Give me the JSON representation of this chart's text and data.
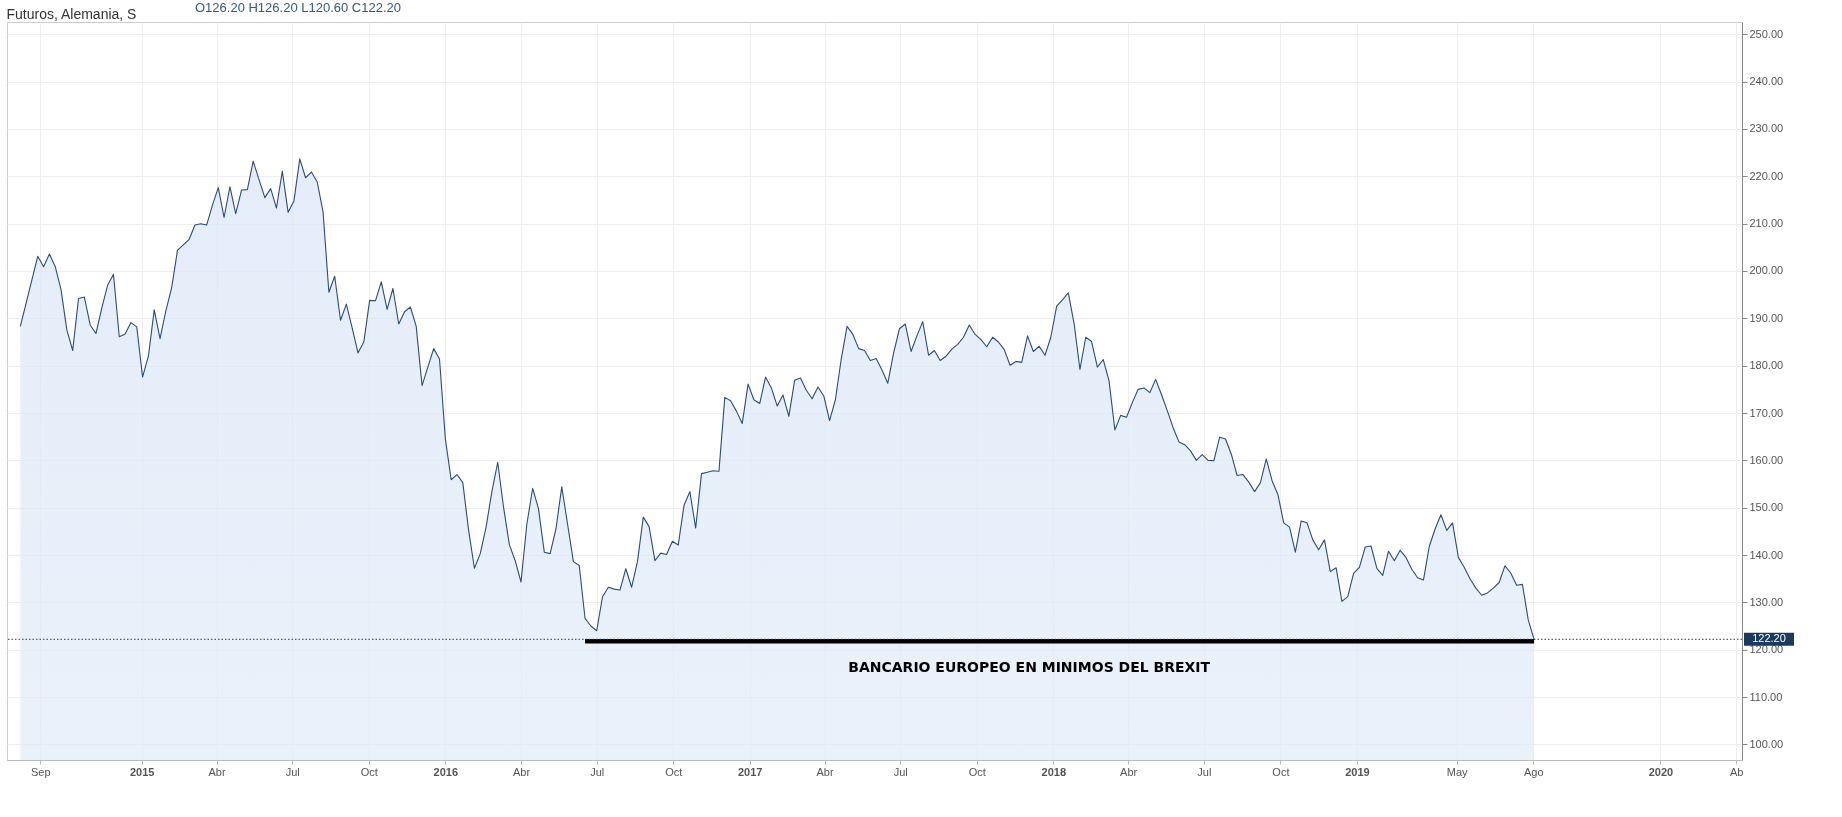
{
  "chart_data": {
    "type": "area",
    "title": "Futuros, Alemania, S",
    "annotations": [
      "O126.20 H126.20 L120.60 C122.20",
      {
        "text": "BANCARIO EUROPEO EN MINIMOS DEL BREXIT",
        "x": "2017-12-03",
        "y": 121.8
      }
    ],
    "x": [
      "2014-08-08",
      "2014-08-15",
      "2014-08-22",
      "2014-08-29",
      "2014-09-05",
      "2014-09-12",
      "2014-09-19",
      "2014-09-26",
      "2014-10-03",
      "2014-10-10",
      "2014-10-17",
      "2014-10-24",
      "2014-10-31",
      "2014-11-07",
      "2014-11-14",
      "2014-11-21",
      "2014-11-28",
      "2014-12-05",
      "2014-12-12",
      "2014-12-19",
      "2014-12-26",
      "2015-01-02",
      "2015-01-09",
      "2015-01-16",
      "2015-01-23",
      "2015-01-30",
      "2015-02-06",
      "2015-02-13",
      "2015-02-20",
      "2015-02-27",
      "2015-03-06",
      "2015-03-13",
      "2015-03-20",
      "2015-03-27",
      "2015-04-03",
      "2015-04-10",
      "2015-04-17",
      "2015-04-24",
      "2015-05-01",
      "2015-05-08",
      "2015-05-15",
      "2015-05-22",
      "2015-05-29",
      "2015-06-05",
      "2015-06-12",
      "2015-06-19",
      "2015-06-26",
      "2015-07-03",
      "2015-07-10",
      "2015-07-17",
      "2015-07-24",
      "2015-07-31",
      "2015-08-07",
      "2015-08-14",
      "2015-08-21",
      "2015-08-28",
      "2015-09-04",
      "2015-09-11",
      "2015-09-18",
      "2015-09-25",
      "2015-10-02",
      "2015-10-09",
      "2015-10-16",
      "2015-10-23",
      "2015-10-30",
      "2015-11-06",
      "2015-11-13",
      "2015-11-20",
      "2015-11-27",
      "2015-12-04",
      "2015-12-11",
      "2015-12-18",
      "2015-12-25",
      "2016-01-01",
      "2016-01-08",
      "2016-01-15",
      "2016-01-22",
      "2016-01-29",
      "2016-02-05",
      "2016-02-12",
      "2016-02-19",
      "2016-02-26",
      "2016-03-04",
      "2016-03-11",
      "2016-03-18",
      "2016-03-25",
      "2016-04-01",
      "2016-04-08",
      "2016-04-15",
      "2016-04-22",
      "2016-04-29",
      "2016-05-06",
      "2016-05-13",
      "2016-05-20",
      "2016-05-27",
      "2016-06-03",
      "2016-06-10",
      "2016-06-17",
      "2016-06-24",
      "2016-07-01",
      "2016-07-08",
      "2016-07-15",
      "2016-07-22",
      "2016-07-29",
      "2016-08-05",
      "2016-08-12",
      "2016-08-19",
      "2016-08-26",
      "2016-09-02",
      "2016-09-09",
      "2016-09-16",
      "2016-09-23",
      "2016-09-30",
      "2016-10-07",
      "2016-10-14",
      "2016-10-21",
      "2016-10-28",
      "2016-11-04",
      "2016-11-11",
      "2016-11-18",
      "2016-11-25",
      "2016-12-02",
      "2016-12-09",
      "2016-12-16",
      "2016-12-23",
      "2016-12-30",
      "2017-01-06",
      "2017-01-13",
      "2017-01-20",
      "2017-01-27",
      "2017-02-03",
      "2017-02-10",
      "2017-02-17",
      "2017-02-24",
      "2017-03-03",
      "2017-03-10",
      "2017-03-17",
      "2017-03-24",
      "2017-03-31",
      "2017-04-07",
      "2017-04-14",
      "2017-04-21",
      "2017-04-28",
      "2017-05-05",
      "2017-05-12",
      "2017-05-19",
      "2017-05-26",
      "2017-06-02",
      "2017-06-09",
      "2017-06-16",
      "2017-06-23",
      "2017-06-30",
      "2017-07-07",
      "2017-07-14",
      "2017-07-21",
      "2017-07-28",
      "2017-08-04",
      "2017-08-11",
      "2017-08-18",
      "2017-08-25",
      "2017-09-01",
      "2017-09-08",
      "2017-09-15",
      "2017-09-22",
      "2017-09-29",
      "2017-10-06",
      "2017-10-13",
      "2017-10-20",
      "2017-10-27",
      "2017-11-03",
      "2017-11-10",
      "2017-11-17",
      "2017-11-24",
      "2017-12-01",
      "2017-12-08",
      "2017-12-15",
      "2017-12-22",
      "2017-12-29",
      "2018-01-05",
      "2018-01-12",
      "2018-01-19",
      "2018-01-26",
      "2018-02-02",
      "2018-02-09",
      "2018-02-16",
      "2018-02-23",
      "2018-03-02",
      "2018-03-09",
      "2018-03-16",
      "2018-03-23",
      "2018-03-30",
      "2018-04-06",
      "2018-04-13",
      "2018-04-20",
      "2018-04-27",
      "2018-05-04",
      "2018-05-11",
      "2018-05-18",
      "2018-05-25",
      "2018-06-01",
      "2018-06-08",
      "2018-06-15",
      "2018-06-22",
      "2018-06-29",
      "2018-07-06",
      "2018-07-13",
      "2018-07-20",
      "2018-07-27",
      "2018-08-03",
      "2018-08-10",
      "2018-08-17",
      "2018-08-24",
      "2018-08-31",
      "2018-09-07",
      "2018-09-14",
      "2018-09-21",
      "2018-09-28",
      "2018-10-05",
      "2018-10-12",
      "2018-10-19",
      "2018-10-26",
      "2018-11-02",
      "2018-11-09",
      "2018-11-16",
      "2018-11-23",
      "2018-11-30",
      "2018-12-07",
      "2018-12-14",
      "2018-12-21",
      "2018-12-28",
      "2019-01-04",
      "2019-01-11",
      "2019-01-18",
      "2019-01-25",
      "2019-02-01",
      "2019-02-08",
      "2019-02-15",
      "2019-02-22",
      "2019-03-01",
      "2019-03-08",
      "2019-03-15",
      "2019-03-22",
      "2019-03-29",
      "2019-04-05",
      "2019-04-12",
      "2019-04-19",
      "2019-04-26",
      "2019-05-03",
      "2019-05-10",
      "2019-05-17",
      "2019-05-24",
      "2019-05-31",
      "2019-06-07",
      "2019-06-14",
      "2019-06-21",
      "2019-06-28",
      "2019-07-05",
      "2019-07-12",
      "2019-07-19",
      "2019-07-26",
      "2019-08-02"
    ],
    "series": [
      {
        "color": "#2b4d7a",
        "values": [
          188.3,
          193.2,
          198.2,
          203.1,
          200.9,
          203.6,
          200.9,
          196.0,
          187.5,
          183.2,
          194.2,
          194.5,
          188.6,
          186.8,
          192.2,
          197.0,
          199.3,
          186.1,
          186.7,
          189.1,
          188.2,
          177.6,
          182.0,
          191.8,
          185.7,
          191.6,
          196.5,
          204.4,
          205.5,
          206.7,
          209.7,
          210.0,
          209.7,
          213.9,
          217.6,
          211.3,
          217.8,
          212.1,
          217.1,
          217.2,
          223.2,
          219.3,
          215.5,
          217.4,
          213.3,
          221.1,
          212.4,
          214.8,
          223.7,
          219.7,
          220.9,
          218.8,
          212.5,
          195.5,
          198.9,
          189.6,
          193.0,
          188.0,
          182.7,
          185.0,
          193.8,
          193.7,
          197.7,
          191.9,
          196.3,
          188.8,
          191.4,
          192.4,
          188.3,
          175.8,
          179.7,
          183.6,
          181.4,
          164.6,
          155.9,
          157.0,
          155.3,
          145.2,
          137.2,
          140.3,
          145.9,
          153.4,
          159.6,
          150.1,
          142.2,
          138.8,
          134.3,
          146.5,
          154.1,
          149.8,
          140.6,
          140.3,
          145.5,
          154.4,
          146.5,
          138.6,
          137.8,
          126.6,
          125.0,
          124.0,
          131.2,
          133.2,
          132.8,
          132.6,
          137.1,
          133.2,
          138.6,
          148.0,
          146.0,
          138.8,
          140.4,
          140.1,
          142.9,
          142.1,
          150.5,
          153.4,
          145.7,
          157.2,
          157.5,
          157.8,
          157.7,
          173.3,
          172.6,
          170.4,
          167.8,
          176.1,
          172.8,
          172.0,
          177.6,
          175.3,
          171.5,
          173.8,
          169.3,
          176.9,
          177.4,
          174.8,
          173.0,
          175.5,
          173.6,
          168.4,
          172.8,
          181.4,
          188.3,
          186.6,
          183.6,
          183.2,
          181.1,
          181.5,
          179.1,
          176.3,
          182.7,
          187.8,
          188.8,
          183.0,
          186.3,
          189.3,
          182.2,
          183.2,
          181.1,
          182.0,
          183.5,
          184.5,
          186.0,
          188.6,
          186.6,
          185.5,
          184.0,
          186.0,
          185.0,
          183.4,
          180.1,
          180.9,
          180.7,
          186.3,
          183.0,
          184.1,
          182.2,
          186.0,
          192.6,
          193.9,
          195.4,
          188.9,
          179.2,
          186.0,
          185.1,
          179.7,
          181.3,
          176.8,
          166.4,
          169.5,
          169.1,
          172.2,
          175.0,
          175.3,
          174.3,
          177.1,
          173.9,
          170.5,
          166.9,
          163.9,
          163.3,
          162.0,
          160.0,
          161.2,
          160.0,
          159.9,
          164.9,
          164.5,
          161.3,
          156.8,
          157.0,
          155.4,
          153.4,
          155.3,
          160.3,
          155.7,
          152.8,
          146.8,
          145.9,
          140.6,
          147.2,
          146.8,
          143.2,
          141.1,
          143.2,
          136.5,
          137.3,
          130.2,
          131.2,
          136.1,
          137.4,
          141.7,
          141.9,
          137.2,
          135.7,
          140.8,
          138.8,
          141.0,
          139.5,
          137.0,
          135.2,
          134.7,
          141.8,
          145.5,
          148.5,
          145.2,
          146.8,
          139.5,
          137.4,
          135.0,
          133.0,
          131.5,
          132.0,
          133.0,
          134.2,
          137.7,
          136.2,
          133.6,
          133.8,
          126.3,
          122.2
        ]
      },
      {
        "type": "line",
        "color": "#000000",
        "x": [
          "2016-06-17",
          "2019-08-02"
        ],
        "values": [
          121.8,
          121.8
        ]
      }
    ],
    "xlim": [
      "2014-07-23",
      "2020-04-08"
    ],
    "xticks": [
      {
        "value": "2014-09-01",
        "label": "Sep"
      },
      {
        "value": "2015-01-01",
        "label": "2015"
      },
      {
        "value": "2015-04-01",
        "label": "Abr"
      },
      {
        "value": "2015-07-01",
        "label": "Jul"
      },
      {
        "value": "2015-10-01",
        "label": "Oct"
      },
      {
        "value": "2016-01-01",
        "label": "2016"
      },
      {
        "value": "2016-04-01",
        "label": "Abr"
      },
      {
        "value": "2016-07-01",
        "label": "Jul"
      },
      {
        "value": "2016-10-01",
        "label": "Oct"
      },
      {
        "value": "2017-01-01",
        "label": "2017"
      },
      {
        "value": "2017-04-01",
        "label": "Abr"
      },
      {
        "value": "2017-07-01",
        "label": "Jul"
      },
      {
        "value": "2017-10-01",
        "label": "Oct"
      },
      {
        "value": "2018-01-01",
        "label": "2018"
      },
      {
        "value": "2018-04-01",
        "label": "Abr"
      },
      {
        "value": "2018-07-01",
        "label": "Jul"
      },
      {
        "value": "2018-10-01",
        "label": "Oct"
      },
      {
        "value": "2019-01-01",
        "label": "2019"
      },
      {
        "value": "2019-05-01",
        "label": "May"
      },
      {
        "value": "2019-08-01",
        "label": "Ago"
      },
      {
        "value": "2020-01-01",
        "label": "2020"
      },
      {
        "value": "2020-04-01",
        "label": "Ab"
      }
    ],
    "ylim": [
      96.7,
      252.6
    ],
    "yticks": [
      {
        "value": 100,
        "label": "100.00"
      },
      {
        "value": 110,
        "label": "110.00"
      },
      {
        "value": 120,
        "label": "120.00"
      },
      {
        "value": 130,
        "label": "130.00"
      },
      {
        "value": 140,
        "label": "140.00"
      },
      {
        "value": 150,
        "label": "150.00"
      },
      {
        "value": 160,
        "label": "160.00"
      },
      {
        "value": 170,
        "label": "170.00"
      },
      {
        "value": 180,
        "label": "180.00"
      },
      {
        "value": 190,
        "label": "190.00"
      },
      {
        "value": 200,
        "label": "200.00"
      },
      {
        "value": 210,
        "label": "210.00"
      },
      {
        "value": 220,
        "label": "220.00"
      },
      {
        "value": 230,
        "label": "230.00"
      },
      {
        "value": 240,
        "label": "240.00"
      },
      {
        "value": 250,
        "label": "250.00"
      }
    ],
    "grid": true,
    "ref_lines": [
      {
        "axis": "y",
        "value": 122.2,
        "label": "122.20",
        "color": "#1b3a5e",
        "line_style": "dotted"
      }
    ]
  }
}
